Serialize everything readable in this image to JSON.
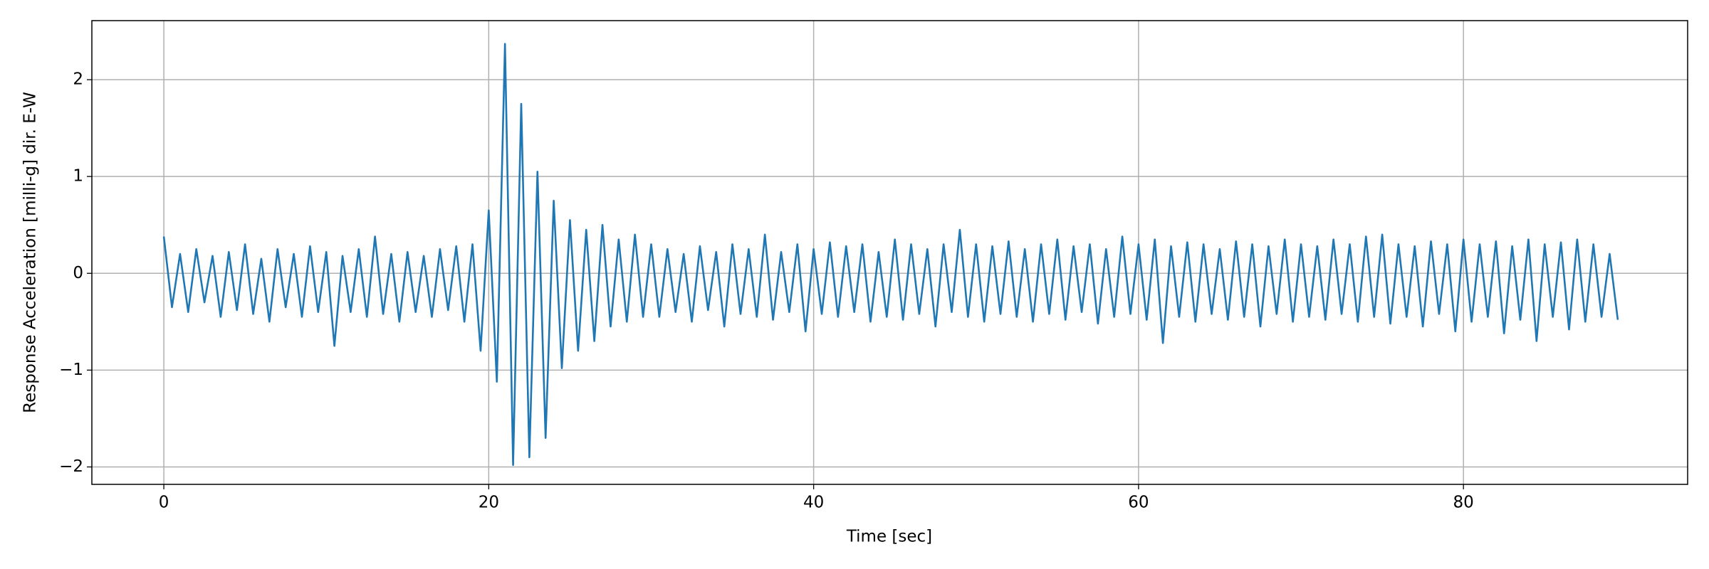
{
  "chart_data": {
    "type": "line",
    "xlabel": "Time [sec]",
    "ylabel": "Response Acceleration [milli-g] dir. E-W",
    "color": "#1f77b4",
    "grid": true,
    "xlim": [
      -4.43,
      93.8
    ],
    "ylim": [
      -2.18,
      2.61
    ],
    "xticks": [
      0,
      20,
      40,
      60,
      80
    ],
    "yticks": [
      {
        "value": -2,
        "label": "−2"
      },
      {
        "value": -1,
        "label": "−1"
      },
      0,
      1,
      2
    ],
    "x": [
      0,
      0.5,
      1,
      1.5,
      2,
      2.5,
      3,
      3.5,
      4,
      4.5,
      5,
      5.5,
      6,
      6.5,
      7,
      7.5,
      8,
      8.5,
      9,
      9.5,
      10,
      10.5,
      11,
      11.5,
      12,
      12.5,
      13,
      13.5,
      14,
      14.5,
      15,
      15.5,
      16,
      16.5,
      17,
      17.5,
      18,
      18.5,
      19,
      19.5,
      20,
      20.5,
      21,
      21.5,
      22,
      22.5,
      23,
      23.5,
      24,
      24.5,
      25,
      25.5,
      26,
      26.5,
      27,
      27.5,
      28,
      28.5,
      29,
      29.5,
      30,
      30.5,
      31,
      31.5,
      32,
      32.5,
      33,
      33.5,
      34,
      34.5,
      35,
      35.5,
      36,
      36.5,
      37,
      37.5,
      38,
      38.5,
      39,
      39.5,
      40,
      40.5,
      41,
      41.5,
      42,
      42.5,
      43,
      43.5,
      44,
      44.5,
      45,
      45.5,
      46,
      46.5,
      47,
      47.5,
      48,
      48.5,
      49,
      49.5,
      50,
      50.5,
      51,
      51.5,
      52,
      52.5,
      53,
      53.5,
      54,
      54.5,
      55,
      55.5,
      56,
      56.5,
      57,
      57.5,
      58,
      58.5,
      59,
      59.5,
      60,
      60.5,
      61,
      61.5,
      62,
      62.5,
      63,
      63.5,
      64,
      64.5,
      65,
      65.5,
      66,
      66.5,
      67,
      67.5,
      68,
      68.5,
      69,
      69.5,
      70,
      70.5,
      71,
      71.5,
      72,
      72.5,
      73,
      73.5,
      74,
      74.5,
      75,
      75.5,
      76,
      76.5,
      77,
      77.5,
      78,
      78.5,
      79,
      79.5,
      80,
      80.5,
      81,
      81.5,
      82,
      82.5,
      83,
      83.5,
      84,
      84.5,
      85,
      85.5,
      86,
      86.5,
      87,
      87.5,
      88,
      88.5,
      89,
      89.5
    ],
    "values": [
      0.38,
      -0.35,
      0.2,
      -0.4,
      0.25,
      -0.3,
      0.18,
      -0.45,
      0.22,
      -0.38,
      0.3,
      -0.42,
      0.15,
      -0.5,
      0.25,
      -0.35,
      0.2,
      -0.45,
      0.28,
      -0.4,
      0.22,
      -0.75,
      0.18,
      -0.4,
      0.25,
      -0.45,
      0.38,
      -0.42,
      0.2,
      -0.5,
      0.22,
      -0.4,
      0.18,
      -0.45,
      0.25,
      -0.38,
      0.28,
      -0.5,
      0.3,
      -0.8,
      0.65,
      -1.12,
      2.37,
      -1.98,
      1.75,
      -1.9,
      1.05,
      -1.7,
      0.75,
      -0.98,
      0.55,
      -0.8,
      0.45,
      -0.7,
      0.5,
      -0.55,
      0.35,
      -0.5,
      0.4,
      -0.45,
      0.3,
      -0.45,
      0.25,
      -0.4,
      0.2,
      -0.5,
      0.28,
      -0.38,
      0.22,
      -0.55,
      0.3,
      -0.42,
      0.25,
      -0.45,
      0.4,
      -0.48,
      0.22,
      -0.4,
      0.3,
      -0.6,
      0.25,
      -0.42,
      0.32,
      -0.45,
      0.28,
      -0.4,
      0.3,
      -0.5,
      0.22,
      -0.45,
      0.35,
      -0.48,
      0.3,
      -0.42,
      0.25,
      -0.55,
      0.3,
      -0.4,
      0.45,
      -0.45,
      0.3,
      -0.5,
      0.28,
      -0.42,
      0.33,
      -0.45,
      0.25,
      -0.5,
      0.3,
      -0.42,
      0.35,
      -0.48,
      0.28,
      -0.4,
      0.3,
      -0.52,
      0.25,
      -0.45,
      0.38,
      -0.42,
      0.3,
      -0.48,
      0.35,
      -0.72,
      0.28,
      -0.45,
      0.32,
      -0.5,
      0.3,
      -0.42,
      0.25,
      -0.48,
      0.33,
      -0.45,
      0.3,
      -0.55,
      0.28,
      -0.42,
      0.35,
      -0.5,
      0.3,
      -0.45,
      0.28,
      -0.48,
      0.35,
      -0.42,
      0.3,
      -0.5,
      0.38,
      -0.45,
      0.4,
      -0.52,
      0.3,
      -0.45,
      0.28,
      -0.55,
      0.33,
      -0.42,
      0.3,
      -0.6,
      0.35,
      -0.5,
      0.3,
      -0.45,
      0.33,
      -0.62,
      0.28,
      -0.48,
      0.35,
      -0.7,
      0.3,
      -0.45,
      0.32,
      -0.58,
      0.35,
      -0.5,
      0.3,
      -0.45,
      0.2,
      -0.48
    ]
  }
}
